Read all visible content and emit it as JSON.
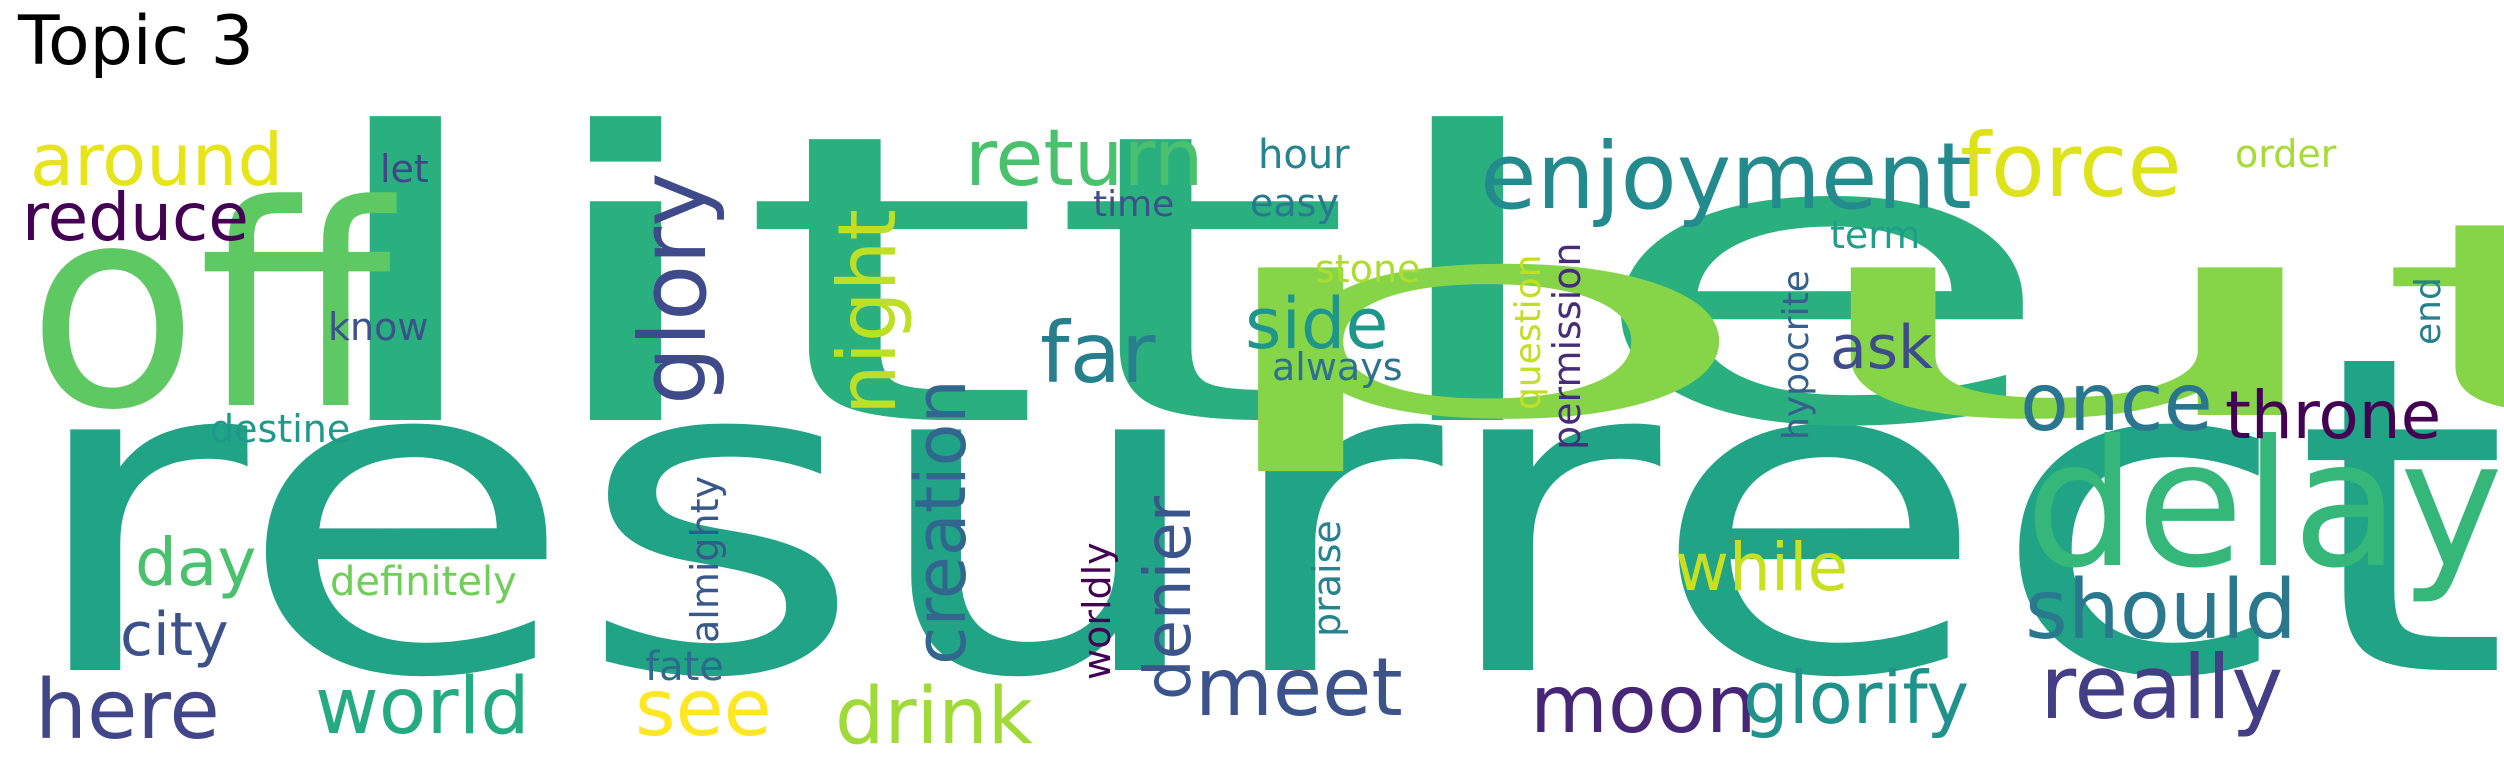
{
  "title": "Topic 3",
  "words": [
    {
      "text": "resurrect",
      "color": "#21a385"
    },
    {
      "text": "little",
      "color": "#2ab07f"
    },
    {
      "text": "put",
      "color": "#86d549"
    },
    {
      "text": "off",
      "color": "#5ec962"
    },
    {
      "text": "delay",
      "color": "#35b779"
    },
    {
      "text": "enjoyment",
      "color": "#238a8d"
    },
    {
      "text": "force",
      "color": "#dde318"
    },
    {
      "text": "around",
      "color": "#e7e419"
    },
    {
      "text": "reduce",
      "color": "#440154"
    },
    {
      "text": "let",
      "color": "#404688"
    },
    {
      "text": "glory",
      "color": "#3e4a89"
    },
    {
      "text": "night",
      "color": "#bddf26"
    },
    {
      "text": "return",
      "color": "#4ac16d"
    },
    {
      "text": "hour",
      "color": "#25858e"
    },
    {
      "text": "order",
      "color": "#a8db34"
    },
    {
      "text": "time",
      "color": "#3b528b"
    },
    {
      "text": "easy",
      "color": "#2a788e"
    },
    {
      "text": "stone",
      "color": "#addc30"
    },
    {
      "text": "term",
      "color": "#1f9e89"
    },
    {
      "text": "know",
      "color": "#3b528b"
    },
    {
      "text": "far",
      "color": "#277f8e"
    },
    {
      "text": "side",
      "color": "#1f968b"
    },
    {
      "text": "always",
      "color": "#2c728e"
    },
    {
      "text": "ask",
      "color": "#3e4c8a"
    },
    {
      "text": "once",
      "color": "#2a768e"
    },
    {
      "text": "throne",
      "color": "#440154"
    },
    {
      "text": "destine",
      "color": "#1f998a"
    },
    {
      "text": "question",
      "color": "#c2df23"
    },
    {
      "text": "permission",
      "color": "#472c7a"
    },
    {
      "text": "hypocrite",
      "color": "#355f8d"
    },
    {
      "text": "end",
      "color": "#27808e"
    },
    {
      "text": "creation",
      "color": "#31668e"
    },
    {
      "text": "day",
      "color": "#4ac16d"
    },
    {
      "text": "definitely",
      "color": "#6ece58"
    },
    {
      "text": "almighty",
      "color": "#38588c"
    },
    {
      "text": "city",
      "color": "#3b528b"
    },
    {
      "text": "worldly",
      "color": "#440154"
    },
    {
      "text": "denier",
      "color": "#3a548c"
    },
    {
      "text": "praise",
      "color": "#26828e"
    },
    {
      "text": "while",
      "color": "#c8e020"
    },
    {
      "text": "should",
      "color": "#2a788e"
    },
    {
      "text": "fate",
      "color": "#30698e"
    },
    {
      "text": "here",
      "color": "#404688"
    },
    {
      "text": "world",
      "color": "#25ab82"
    },
    {
      "text": "see",
      "color": "#fde725"
    },
    {
      "text": "drink",
      "color": "#a0da39"
    },
    {
      "text": "meet",
      "color": "#3b528b"
    },
    {
      "text": "moon",
      "color": "#482677"
    },
    {
      "text": "glorify",
      "color": "#20928c"
    },
    {
      "text": "really",
      "color": "#433e85"
    }
  ]
}
